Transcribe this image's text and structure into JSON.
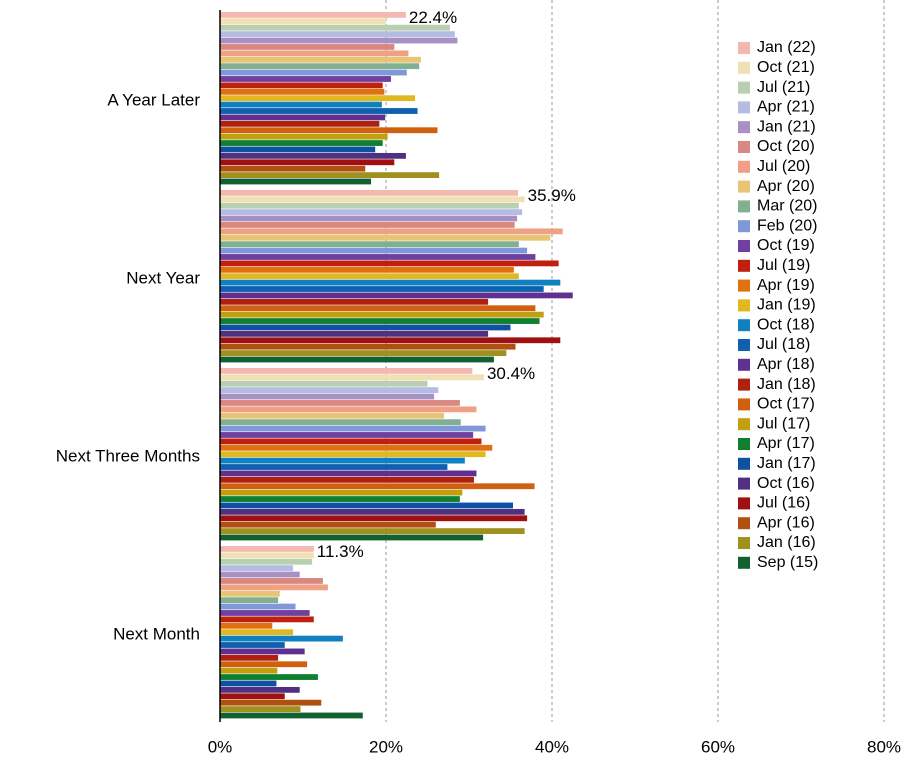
{
  "chart_data": {
    "type": "hbar",
    "categories": [
      "A Year Later",
      "Next Year",
      "Next Three Months",
      "Next Month"
    ],
    "xlim": [
      0,
      80
    ],
    "xticks": [
      {
        "value": 0,
        "label": "0%"
      },
      {
        "value": 20,
        "label": "20%"
      },
      {
        "value": 40,
        "label": "40%"
      },
      {
        "value": 60,
        "label": "60%"
      },
      {
        "value": 80,
        "label": "80%"
      }
    ],
    "grid": true,
    "legend": "right",
    "series": [
      {
        "name": "Jan (22)",
        "color": "#f4b8b0",
        "values": [
          22.4,
          35.9,
          30.4,
          11.3
        ],
        "value_labels": [
          "22.4%",
          "35.9%",
          "30.4%",
          "11.3%"
        ]
      },
      {
        "name": "Oct (21)",
        "color": "#f0e0b4",
        "values": [
          20.0,
          36.7,
          31.8,
          11.3
        ]
      },
      {
        "name": "Jul (21)",
        "color": "#b8d0b0",
        "values": [
          27.7,
          36.0,
          25.0,
          11.1
        ]
      },
      {
        "name": "Apr (21)",
        "color": "#b4bce4",
        "values": [
          28.3,
          36.4,
          26.3,
          8.8
        ]
      },
      {
        "name": "Jan (21)",
        "color": "#a890c4",
        "values": [
          28.6,
          35.8,
          25.8,
          9.6
        ]
      },
      {
        "name": "Oct (20)",
        "color": "#d88880",
        "values": [
          21.0,
          35.5,
          28.9,
          12.4
        ]
      },
      {
        "name": "Jul (20)",
        "color": "#f0a084",
        "values": [
          22.7,
          41.3,
          30.9,
          13.0
        ]
      },
      {
        "name": "Apr (20)",
        "color": "#e8c474",
        "values": [
          24.2,
          39.8,
          27.0,
          7.2
        ]
      },
      {
        "name": "Mar (20)",
        "color": "#80b090",
        "values": [
          24.0,
          36.0,
          29.0,
          7.0
        ]
      },
      {
        "name": "Feb (20)",
        "color": "#8098d8",
        "values": [
          22.5,
          37.0,
          32.0,
          9.1
        ]
      },
      {
        "name": "Oct (19)",
        "color": "#7040a0",
        "values": [
          20.6,
          38.0,
          30.5,
          10.8
        ]
      },
      {
        "name": "Jul (19)",
        "color": "#c02010",
        "values": [
          19.6,
          40.8,
          31.5,
          11.3
        ]
      },
      {
        "name": "Apr (19)",
        "color": "#e07010",
        "values": [
          19.8,
          35.4,
          32.8,
          6.3
        ]
      },
      {
        "name": "Jan (19)",
        "color": "#e0b820",
        "values": [
          23.5,
          36.0,
          32.0,
          8.8
        ]
      },
      {
        "name": "Oct (18)",
        "color": "#1080c0",
        "values": [
          19.5,
          41.0,
          29.5,
          14.8
        ]
      },
      {
        "name": "Jul (18)",
        "color": "#1060b0",
        "values": [
          23.8,
          39.0,
          27.4,
          7.8
        ]
      },
      {
        "name": "Apr (18)",
        "color": "#603090",
        "values": [
          19.9,
          42.5,
          30.9,
          10.2
        ]
      },
      {
        "name": "Jan (18)",
        "color": "#b02010",
        "values": [
          19.2,
          32.3,
          30.6,
          7.0
        ]
      },
      {
        "name": "Oct (17)",
        "color": "#d06010",
        "values": [
          26.2,
          38.0,
          37.9,
          10.5
        ]
      },
      {
        "name": "Jul (17)",
        "color": "#c0a010",
        "values": [
          20.2,
          39.0,
          29.2,
          6.9
        ]
      },
      {
        "name": "Apr (17)",
        "color": "#108030",
        "values": [
          19.6,
          38.5,
          28.9,
          11.8
        ]
      },
      {
        "name": "Jan (17)",
        "color": "#1050a0",
        "values": [
          18.7,
          35.0,
          35.3,
          6.8
        ]
      },
      {
        "name": "Oct (16)",
        "color": "#503080",
        "values": [
          22.4,
          32.3,
          36.7,
          9.6
        ]
      },
      {
        "name": "Jul (16)",
        "color": "#a01010",
        "values": [
          21.0,
          41.0,
          37.0,
          7.8
        ]
      },
      {
        "name": "Apr (16)",
        "color": "#b05010",
        "values": [
          17.5,
          35.6,
          26.0,
          12.2
        ]
      },
      {
        "name": "Jan (16)",
        "color": "#a09020",
        "values": [
          26.4,
          34.5,
          36.7,
          9.7
        ]
      },
      {
        "name": "Sep (15)",
        "color": "#106030",
        "values": [
          18.2,
          33.0,
          31.7,
          17.2
        ]
      }
    ]
  }
}
